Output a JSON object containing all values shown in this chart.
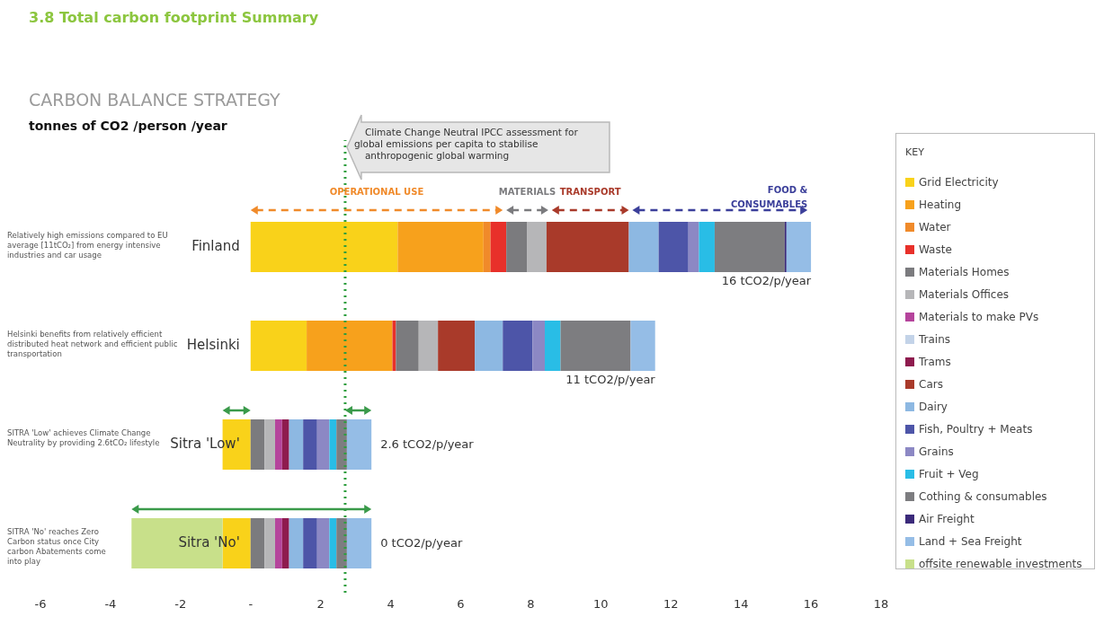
{
  "chart_data": {
    "type": "bar",
    "orientation": "horizontal",
    "stacked": true,
    "title": "3.8 Total carbon footprint Summary",
    "subtitle": "CARBON BALANCE STRATEGY",
    "legend_title": "KEY",
    "legend": "right",
    "categories": [
      "Finland",
      "Helsinki",
      "Sitra 'Low'",
      "Sitra 'No'"
    ],
    "xlim": [
      -6,
      18
    ],
    "xticks": [
      -6,
      -4,
      -2,
      {
        "value": 0,
        "label": "-"
      },
      2,
      4,
      6,
      8,
      10,
      12,
      14,
      16,
      18
    ],
    "series": [
      {
        "name": "Grid Electricity",
        "color": "#f9d21a",
        "values": [
          4.2,
          1.6,
          -0.8,
          -0.8
        ]
      },
      {
        "name": "Heating",
        "color": "#f7a11c",
        "values": [
          2.45,
          2.45,
          null,
          null
        ]
      },
      {
        "name": "Water",
        "color": "#f08a2a",
        "values": [
          0.2,
          null,
          null,
          null
        ]
      },
      {
        "name": "Waste",
        "color": "#e8302a",
        "values": [
          0.45,
          0.1,
          null,
          null
        ]
      },
      {
        "name": "Materials Homes",
        "color": "#7b7b7e",
        "values": [
          0.6,
          0.65,
          0.4,
          0.4
        ]
      },
      {
        "name": "Materials Offices",
        "color": "#b6b6b8",
        "values": [
          0.55,
          0.55,
          0.3,
          0.3
        ]
      },
      {
        "name": "Materials to make PVs",
        "color": "#b5449c",
        "values": [
          null,
          null,
          0.2,
          0.2
        ]
      },
      {
        "name": "Trains",
        "color": "#c3d3e8",
        "values": [
          null,
          null,
          null,
          null
        ]
      },
      {
        "name": "Trams",
        "color": "#8e1b4e",
        "values": [
          null,
          null,
          0.2,
          0.2
        ]
      },
      {
        "name": "Cars",
        "color": "#a93a2a",
        "values": [
          2.35,
          1.05,
          null,
          null
        ]
      },
      {
        "name": "Dairy",
        "color": "#8db8e2",
        "values": [
          0.85,
          0.8,
          0.4,
          0.4
        ]
      },
      {
        "name": "Fish, Poultry + Meats",
        "color": "#4d55a8",
        "values": [
          0.85,
          0.85,
          0.4,
          0.4
        ]
      },
      {
        "name": "Grains",
        "color": "#8c88c4",
        "values": [
          0.3,
          0.35,
          0.35,
          0.35
        ]
      },
      {
        "name": "Fruit + Veg",
        "color": "#29bde6",
        "values": [
          0.45,
          0.45,
          0.2,
          0.2
        ]
      },
      {
        "name": "Cothing & consumables",
        "color": "#7d7d80",
        "values": [
          2.0,
          2.0,
          0.3,
          0.3
        ]
      },
      {
        "name": "Air Freight",
        "color": "#3b2a7a",
        "values": [
          0.05,
          null,
          null,
          null
        ]
      },
      {
        "name": "Land + Sea Freight",
        "color": "#95bde6",
        "values": [
          0.7,
          0.7,
          0.7,
          0.7
        ]
      },
      {
        "name": "offsite renewable investments",
        "color": "#c8e08a",
        "values": [
          null,
          null,
          null,
          -2.6
        ]
      }
    ],
    "totals": [
      "16 tCO2/p/year",
      "11 tCO2/p/year",
      "2.6 tCO2/p/year",
      "0 tCO2/p/year"
    ],
    "ref_lines": [
      {
        "axis": "x",
        "value": 2.7,
        "label": "Climate Change Neutral IPCC assessment for global emissions per capita to stabilise anthropogenic global warming",
        "color": "#2e9e3e",
        "line_style": "dotted"
      }
    ],
    "annotations": [
      "Relatively high emissions compared to EU average [11tCO₂] from energy intensive industries and car usage",
      "Helsinki benefits from  relatively efficient distributed heat network and efficient public transportation",
      "SITRA 'Low' achieves Climate Change Neutrality  by providing 2.6tCO₂ lifestyle",
      "SITRA 'No' reaches Zero Carbon status once City carbon Abatements come into play",
      "OPERATIONAL USE",
      "MATERIALS",
      "TRANSPORT",
      "FOOD & CONSUMABLES",
      "tonnes of CO2 /person /year"
    ]
  }
}
